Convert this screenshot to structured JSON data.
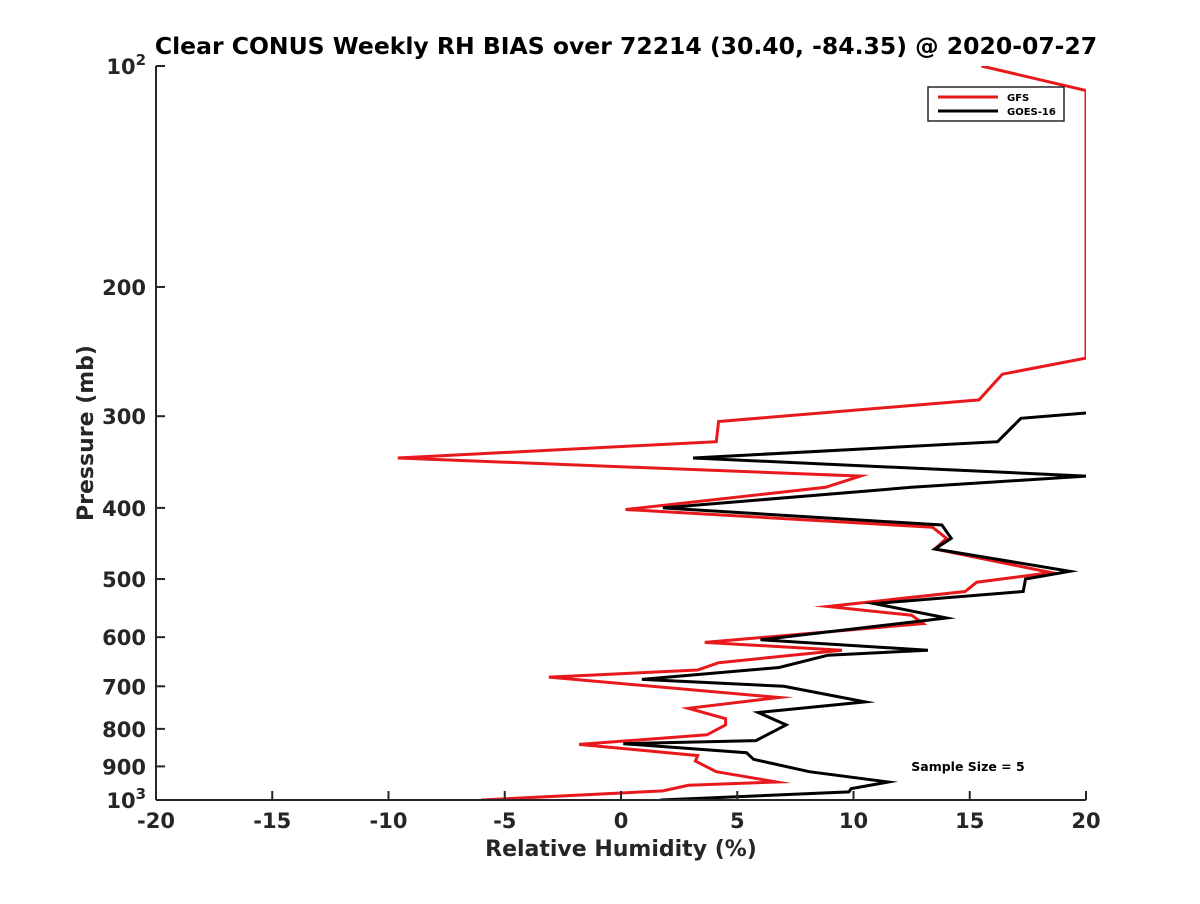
{
  "chart_data": {
    "type": "line",
    "title": "Clear CONUS Weekly RH BIAS over 72214 (30.40, -84.35) @ 2020-07-27",
    "xlabel": "Relative Humidity (%)",
    "ylabel": "Pressure (mb)",
    "xlim": [
      -20,
      20
    ],
    "ylim": [
      100,
      1000
    ],
    "y_scale": "log",
    "y_reversed": true,
    "x_ticks": [
      {
        "value": -20,
        "label": "-20"
      },
      {
        "value": -15,
        "label": "-15"
      },
      {
        "value": -10,
        "label": "-10"
      },
      {
        "value": -5,
        "label": "-5"
      },
      {
        "value": 0,
        "label": "0"
      },
      {
        "value": 5,
        "label": "5"
      },
      {
        "value": 10,
        "label": "10"
      },
      {
        "value": 15,
        "label": "15"
      },
      {
        "value": 20,
        "label": "20"
      }
    ],
    "y_ticks": [
      {
        "value": 100,
        "label": "10",
        "sup": "2"
      },
      {
        "value": 200,
        "label": "200"
      },
      {
        "value": 300,
        "label": "300"
      },
      {
        "value": 400,
        "label": "400"
      },
      {
        "value": 500,
        "label": "500"
      },
      {
        "value": 600,
        "label": "600"
      },
      {
        "value": 700,
        "label": "700"
      },
      {
        "value": 800,
        "label": "800"
      },
      {
        "value": 900,
        "label": "900"
      },
      {
        "value": 1000,
        "label": "10",
        "sup": "3"
      }
    ],
    "legend_position": "top-right",
    "annotation": "Sample Size = 5",
    "series": [
      {
        "name": "GFS",
        "color": "#e8191c",
        "points": [
          [
            15.5,
            100
          ],
          [
            20.0,
            108
          ],
          [
            20.0,
            250
          ],
          [
            16.4,
            263
          ],
          [
            15.4,
            285
          ],
          [
            4.2,
            305
          ],
          [
            4.1,
            325
          ],
          [
            -9.6,
            342
          ],
          [
            10.3,
            362
          ],
          [
            8.8,
            375
          ],
          [
            0.2,
            402
          ],
          [
            13.4,
            425
          ],
          [
            14.0,
            440
          ],
          [
            13.5,
            455
          ],
          [
            18.5,
            490
          ],
          [
            15.3,
            505
          ],
          [
            14.8,
            520
          ],
          [
            8.9,
            545
          ],
          [
            12.5,
            560
          ],
          [
            13.0,
            575
          ],
          [
            3.6,
            610
          ],
          [
            9.5,
            625
          ],
          [
            4.2,
            650
          ],
          [
            3.3,
            665
          ],
          [
            -3.1,
            680
          ],
          [
            6.8,
            725
          ],
          [
            2.9,
            750
          ],
          [
            4.5,
            775
          ],
          [
            4.5,
            790
          ],
          [
            3.7,
            815
          ],
          [
            -1.8,
            840
          ],
          [
            3.3,
            870
          ],
          [
            3.2,
            885
          ],
          [
            4.1,
            915
          ],
          [
            6.7,
            945
          ],
          [
            2.9,
            955
          ],
          [
            1.8,
            972
          ],
          [
            -6.0,
            1000
          ]
        ]
      },
      {
        "name": "GOES-16",
        "color": "#000000",
        "points": [
          [
            20.0,
            297
          ],
          [
            17.2,
            302
          ],
          [
            16.2,
            325
          ],
          [
            3.1,
            342
          ],
          [
            20.0,
            362
          ],
          [
            12.5,
            375
          ],
          [
            1.8,
            400
          ],
          [
            13.8,
            422
          ],
          [
            14.2,
            440
          ],
          [
            13.5,
            455
          ],
          [
            19.3,
            488
          ],
          [
            17.4,
            500
          ],
          [
            17.3,
            520
          ],
          [
            10.9,
            540
          ],
          [
            14.0,
            565
          ],
          [
            6.0,
            605
          ],
          [
            13.2,
            625
          ],
          [
            8.9,
            635
          ],
          [
            6.8,
            660
          ],
          [
            0.9,
            685
          ],
          [
            7.0,
            700
          ],
          [
            10.5,
            735
          ],
          [
            5.9,
            760
          ],
          [
            7.1,
            790
          ],
          [
            6.6,
            805
          ],
          [
            5.8,
            830
          ],
          [
            0.1,
            838
          ],
          [
            5.4,
            862
          ],
          [
            5.7,
            880
          ],
          [
            8.1,
            915
          ],
          [
            11.5,
            945
          ],
          [
            9.9,
            965
          ],
          [
            9.8,
            975
          ],
          [
            1.7,
            1000
          ]
        ]
      }
    ]
  }
}
